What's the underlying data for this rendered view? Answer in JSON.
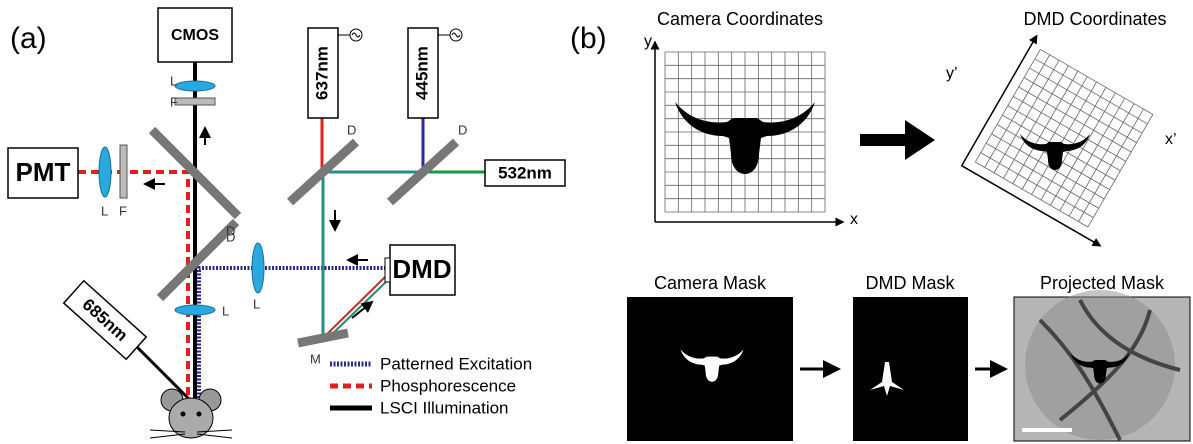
{
  "panel_a": {
    "label": "(a)",
    "cmos": "CMOS",
    "cmos_lens": "L",
    "cmos_filter": "F",
    "pmt": "PMT",
    "pmt_lens": "L",
    "pmt_filter": "F",
    "dichroic_upper": "D",
    "dichroic_lower": "D",
    "laser_red": "637nm",
    "laser_blue": "445nm",
    "mirror_red": "D",
    "mirror_blue": "D",
    "laser_green": "532nm",
    "dmd": "DMD",
    "dmd_lens": "L",
    "mirror": "M",
    "laser_lsci": "685nm",
    "objective_lens": "L",
    "legend": [
      "Patterned Excitation",
      "Phosphorescence",
      "LSCI Illumination"
    ]
  },
  "panel_b": {
    "label": "(b)",
    "camera_title": "Camera Coordinates",
    "camera_y": "y",
    "camera_x": "x",
    "dmd_title": "DMD Coordinates",
    "dmd_y": "y’",
    "dmd_x": "x’",
    "camera_mask": "Camera Mask",
    "dmd_mask": "DMD Mask",
    "projected_mask": "Projected Mask"
  }
}
